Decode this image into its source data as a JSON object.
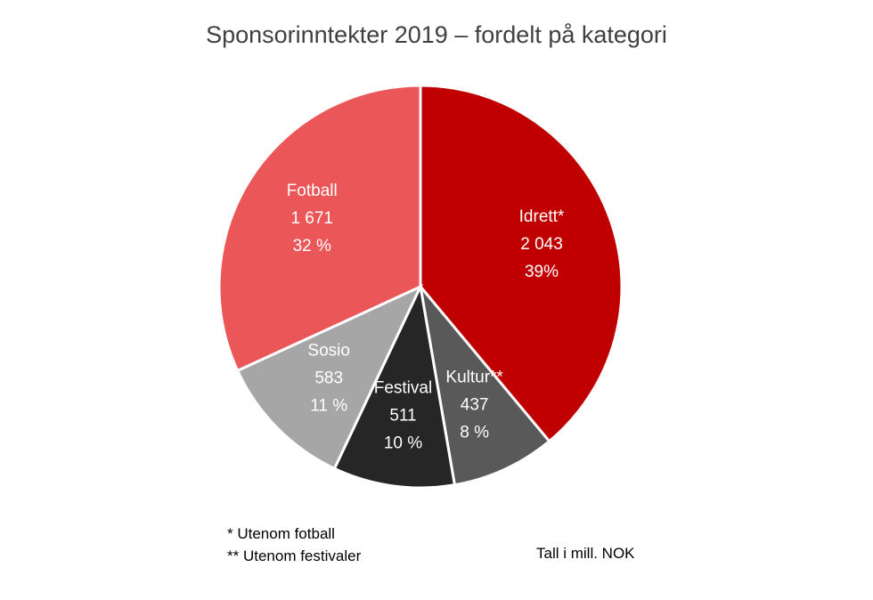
{
  "chart_data": {
    "type": "pie",
    "title": "Sponsorinntekter 2019 – fordelt på kategori",
    "slices": [
      {
        "label": "Idrett*",
        "value_text": "2 043",
        "value": 2043,
        "percent_text": "39%",
        "color": "#c00000",
        "text_color": "#ffffff"
      },
      {
        "label": "Kultur**",
        "value_text": "437",
        "value": 437,
        "percent_text": "8 %",
        "color": "#595959",
        "text_color": "#ffffff"
      },
      {
        "label": "Festival",
        "value_text": "511",
        "value": 511,
        "percent_text": "10 %",
        "color": "#262626",
        "text_color": "#ffffff"
      },
      {
        "label": "Sosio",
        "value_text": "583",
        "value": 583,
        "percent_text": "11 %",
        "color": "#a6a6a6",
        "text_color": "#ffffff"
      },
      {
        "label": "Fotball",
        "value_text": "1 671",
        "value": 1671,
        "percent_text": "32 %",
        "color": "#eb5759",
        "text_color": "#ffffff"
      }
    ],
    "start": "12 o'clock",
    "direction": "clockwise"
  },
  "footnotes": [
    "* Utenom fotball",
    "** Utenom festivaler"
  ],
  "unit_note": "Tall i mill. NOK"
}
